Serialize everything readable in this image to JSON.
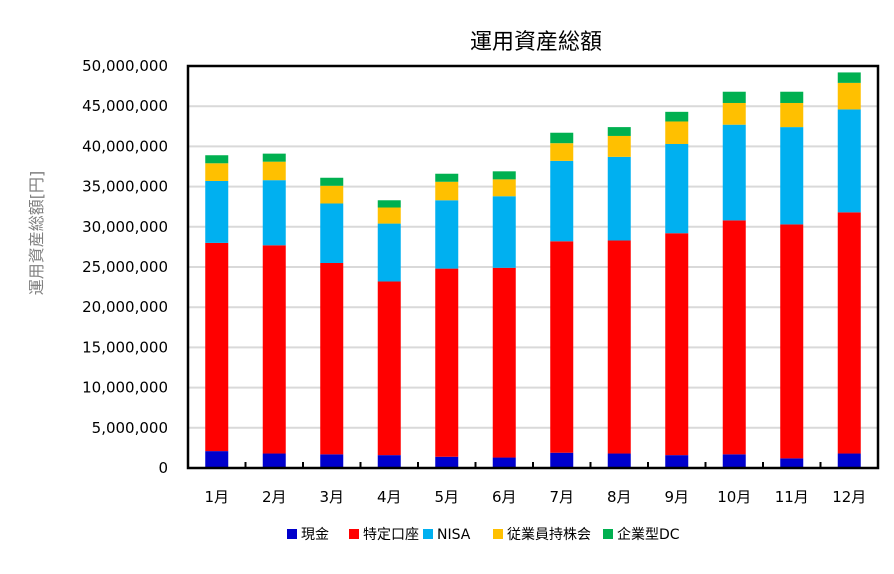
{
  "chart_data": {
    "type": "bar",
    "stacked": true,
    "title": "運用資産総額",
    "xlabel": "",
    "ylabel": "運用資産総額[円]",
    "ylim": [
      0,
      50000000
    ],
    "yticks": [
      0,
      5000000,
      10000000,
      15000000,
      20000000,
      25000000,
      30000000,
      35000000,
      40000000,
      45000000,
      50000000
    ],
    "ytick_labels": [
      "0",
      "5,000,000",
      "10,000,000",
      "15,000,000",
      "20,000,000",
      "25,000,000",
      "30,000,000",
      "35,000,000",
      "40,000,000",
      "45,000,000",
      "50,000,000"
    ],
    "grid": true,
    "legend_position": "bottom",
    "categories": [
      "1月",
      "2月",
      "3月",
      "4月",
      "5月",
      "6月",
      "7月",
      "8月",
      "9月",
      "10月",
      "11月",
      "12月"
    ],
    "series": [
      {
        "name": "現金",
        "color": "#0000cc",
        "values": [
          2100000,
          1800000,
          1700000,
          1600000,
          1400000,
          1300000,
          1900000,
          1800000,
          1600000,
          1700000,
          1200000,
          1800000
        ]
      },
      {
        "name": "特定口座",
        "color": "#ff0000",
        "values": [
          25900000,
          25900000,
          23800000,
          21600000,
          23400000,
          23600000,
          26300000,
          26500000,
          27600000,
          29100000,
          29100000,
          30000000
        ]
      },
      {
        "name": "NISA",
        "color": "#00b0f0",
        "values": [
          7700000,
          8100000,
          7400000,
          7200000,
          8500000,
          8900000,
          10000000,
          10400000,
          11100000,
          11900000,
          12100000,
          12800000
        ]
      },
      {
        "name": "従業員持株会",
        "color": "#ffc000",
        "values": [
          2200000,
          2300000,
          2200000,
          2000000,
          2300000,
          2100000,
          2200000,
          2600000,
          2800000,
          2700000,
          3000000,
          3300000
        ]
      },
      {
        "name": "企業型DC",
        "color": "#00b050",
        "values": [
          1000000,
          1000000,
          1000000,
          900000,
          1000000,
          1000000,
          1300000,
          1100000,
          1200000,
          1400000,
          1400000,
          1300000
        ]
      }
    ]
  }
}
